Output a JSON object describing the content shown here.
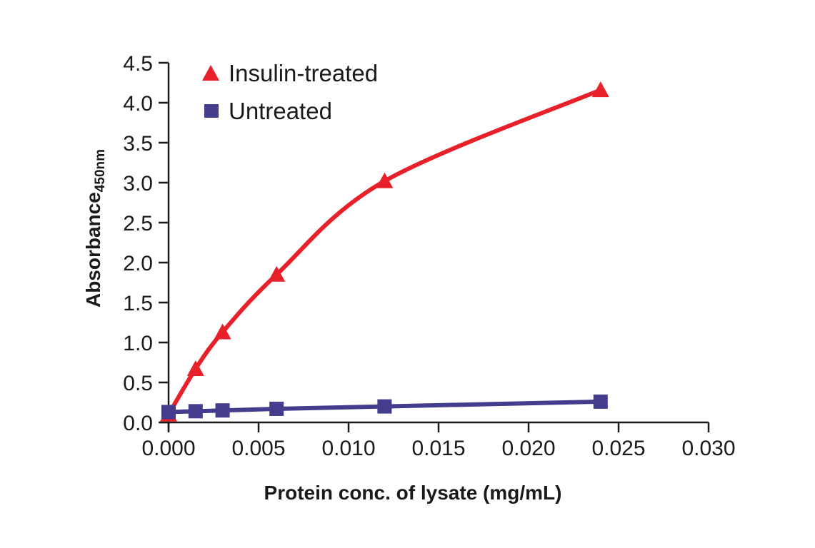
{
  "chart_data": {
    "type": "line",
    "title": "",
    "xlabel": "Protein conc. of lysate (mg/mL)",
    "ylabel": "Absorbance",
    "ylabel_subscript": "450nm",
    "xlim": [
      0,
      0.03
    ],
    "ylim": [
      0,
      4.5
    ],
    "xticks": [
      "0.000",
      "0.005",
      "0.010",
      "0.015",
      "0.020",
      "0.025",
      "0.030"
    ],
    "xtick_values": [
      0,
      0.005,
      0.01,
      0.015,
      0.02,
      0.025,
      0.03
    ],
    "yticks": [
      "0.0",
      "0.5",
      "1.0",
      "1.5",
      "2.0",
      "2.5",
      "3.0",
      "3.5",
      "4.0",
      "4.5"
    ],
    "ytick_values": [
      0,
      0.5,
      1.0,
      1.5,
      2.0,
      2.5,
      3.0,
      3.5,
      4.0,
      4.5
    ],
    "grid": false,
    "legend_position": "top-left",
    "series": [
      {
        "name": "Insulin-treated",
        "marker": "triangle",
        "color": "#e8202a",
        "x": [
          0,
          0.0015,
          0.003,
          0.006,
          0.012,
          0.024
        ],
        "values": [
          0.1,
          0.67,
          1.13,
          1.85,
          3.02,
          4.16
        ],
        "fit": "curve"
      },
      {
        "name": "Untreated",
        "marker": "square",
        "color": "#443c8c",
        "x": [
          0,
          0.0015,
          0.003,
          0.006,
          0.012,
          0.024
        ],
        "values": [
          0.13,
          0.14,
          0.15,
          0.17,
          0.2,
          0.26
        ],
        "fit": "linear"
      }
    ]
  }
}
